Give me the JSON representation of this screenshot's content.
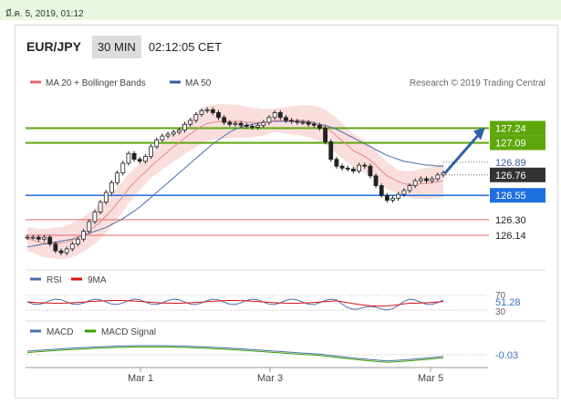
{
  "topbar": {
    "date": "มี.ค. 5, 2019, 01:12"
  },
  "header": {
    "pair": "EUR/JPY",
    "timeframe": "30 MIN",
    "time": "02:12:05 CET"
  },
  "legend": {
    "ma20": "MA 20 + Bollinger Bands",
    "ma50": "MA 50",
    "credit": "Research © 2019 Trading Central"
  },
  "colors": {
    "green": "#5ea70a",
    "blue": "#1f6fe0",
    "red": "#e66666",
    "dark": "#333333",
    "arrow": "#2f63a8",
    "ma50": "#4b6ea8",
    "bb": "#f8d3d3"
  },
  "levels": [
    {
      "label": "127.24",
      "value": 127.24,
      "kind": "resistance-green"
    },
    {
      "label": "127.09",
      "value": 127.09,
      "kind": "resistance-green"
    },
    {
      "label": "126.89",
      "value": 126.89,
      "kind": "plain"
    },
    {
      "label": "126.76",
      "value": 126.76,
      "kind": "current"
    },
    {
      "label": "126.55",
      "value": 126.55,
      "kind": "pivot-blue"
    },
    {
      "label": "126.30",
      "value": 126.3,
      "kind": "support-red"
    },
    {
      "label": "126.14",
      "value": 126.14,
      "kind": "support-red"
    }
  ],
  "rsi": {
    "label": "RSI",
    "ma_label": "9MA",
    "levels": [
      "70",
      "30"
    ],
    "value": "51.28"
  },
  "macd": {
    "label": "MACD",
    "signal_label": "MACD Signal",
    "value": "-0.03"
  },
  "xaxis": [
    "Mar 1",
    "Mar 3",
    "Mar 5"
  ],
  "chart_data": {
    "type": "line",
    "title": "EUR/JPY",
    "ylim": [
      125.84,
      127.62
    ],
    "series": [
      {
        "name": "EUR/JPY",
        "values": [
          126.12,
          126.12,
          126.1,
          126.12,
          126.05,
          125.98,
          125.96,
          126.0,
          126.05,
          126.1,
          126.18,
          126.28,
          126.38,
          126.48,
          126.58,
          126.68,
          126.78,
          126.88,
          126.98,
          126.92,
          126.9,
          126.95,
          127.05,
          127.12,
          127.16,
          127.18,
          127.2,
          127.22,
          127.28,
          127.32,
          127.38,
          127.42,
          127.43,
          127.4,
          127.35,
          127.3,
          127.28,
          127.29,
          127.27,
          127.26,
          127.25,
          127.27,
          127.3,
          127.35,
          127.4,
          127.35,
          127.32,
          127.31,
          127.3,
          127.3,
          127.28,
          127.27,
          127.24,
          127.1,
          126.92,
          126.85,
          126.83,
          126.82,
          126.8,
          126.86,
          126.85,
          126.75,
          126.65,
          126.55,
          126.5,
          126.52,
          126.56,
          126.6,
          126.65,
          126.7,
          126.72,
          126.7,
          126.72,
          126.76,
          126.78
        ]
      },
      {
        "name": "MA 20",
        "values": [
          126.1,
          126.09,
          126.07,
          126.06,
          126.06,
          126.06,
          126.06,
          126.07,
          126.09,
          126.12,
          126.15,
          126.19,
          126.23,
          126.28,
          126.34,
          126.4,
          126.47,
          126.54,
          126.62,
          126.68,
          126.74,
          126.79,
          126.85,
          126.9,
          126.95,
          127.0,
          127.05,
          127.09,
          127.14,
          127.18,
          127.22,
          127.26,
          127.29,
          127.3,
          127.31,
          127.31,
          127.31,
          127.31,
          127.31,
          127.3,
          127.3,
          127.3,
          127.3,
          127.31,
          127.32,
          127.32,
          127.32,
          127.32,
          127.32,
          127.32,
          127.31,
          127.3,
          127.28,
          127.25,
          127.21,
          127.16,
          127.11,
          127.06,
          127.01,
          126.98,
          126.95,
          126.91,
          126.86,
          126.8,
          126.75,
          126.72,
          126.69,
          126.67,
          126.66,
          126.66,
          126.67,
          126.67,
          126.68,
          126.69,
          126.7
        ]
      },
      {
        "name": "MA 50",
        "values": [
          126.02,
          126.03,
          126.04,
          126.05,
          126.06,
          126.07,
          126.08,
          126.09,
          126.1,
          126.12,
          126.14,
          126.16,
          126.18,
          126.2,
          126.22,
          126.25,
          126.28,
          126.31,
          126.35,
          126.39,
          126.43,
          126.48,
          126.53,
          126.58,
          126.63,
          126.68,
          126.73,
          126.78,
          126.83,
          126.88,
          126.93,
          126.98,
          127.03,
          127.08,
          127.12,
          127.16,
          127.2,
          127.23,
          127.25,
          127.27,
          127.28,
          127.29,
          127.3,
          127.31,
          127.31,
          127.31,
          127.31,
          127.31,
          127.31,
          127.31,
          127.3,
          127.29,
          127.28,
          127.27,
          127.25,
          127.23,
          127.2,
          127.17,
          127.14,
          127.11,
          127.08,
          127.05,
          127.02,
          126.99,
          126.96,
          126.94,
          126.92,
          126.9,
          126.89,
          126.88,
          126.87,
          126.86,
          126.86,
          126.85,
          126.85
        ]
      }
    ]
  }
}
